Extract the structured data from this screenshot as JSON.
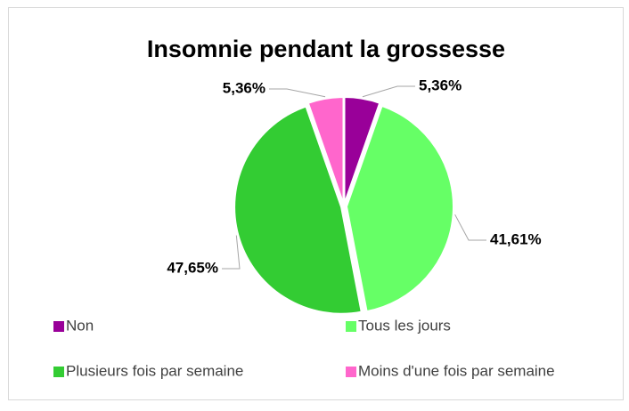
{
  "chart_data": {
    "type": "pie",
    "title": "Insomnie pendant la grossesse",
    "categories": [
      "Non",
      "Tous les jours",
      "Plusieurs fois par semaine",
      "Moins d'une fois par semaine"
    ],
    "values": [
      5.36,
      41.61,
      47.65,
      5.36
    ],
    "value_labels": [
      "5,36%",
      "41,61%",
      "47,65%",
      "5,36%"
    ],
    "colors": [
      "#990099",
      "#66ff66",
      "#33cc33",
      "#ff66cc"
    ],
    "legend": "bottom"
  }
}
